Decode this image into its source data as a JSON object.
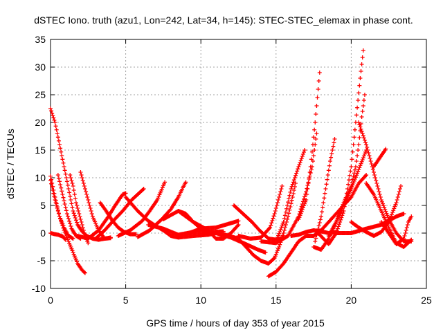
{
  "chart_data": {
    "type": "scatter",
    "title": "dSTEC Iono. truth (azu1, Lon=242, Lat=34, h=145): STEC-STEC_elemax in phase cont.",
    "xlabel": "GPS time / hours of day 353 of year 2015",
    "ylabel": "dSTEC  / TECUs",
    "xlim": [
      0,
      25
    ],
    "ylim": [
      -10,
      35
    ],
    "xticks": [
      0,
      5,
      10,
      15,
      20,
      25
    ],
    "yticks": [
      -10,
      -5,
      0,
      5,
      10,
      15,
      20,
      25,
      30,
      35
    ],
    "grid": true,
    "marker": "+",
    "color": "#ff0000",
    "series": [
      {
        "points": [
          [
            0.0,
            22.5
          ],
          [
            0.3,
            20
          ],
          [
            0.6,
            16
          ],
          [
            0.9,
            12
          ],
          [
            1.2,
            8
          ],
          [
            1.5,
            4
          ],
          [
            1.8,
            1.5
          ],
          [
            2.1,
            0.3
          ],
          [
            2.4,
            -0.5
          ],
          [
            2.8,
            -1.0
          ],
          [
            3.2,
            -1.2
          ],
          [
            3.6,
            -1.0
          ],
          [
            4.0,
            -0.8
          ]
        ]
      },
      {
        "points": [
          [
            0.0,
            10.3
          ],
          [
            0.3,
            6.5
          ],
          [
            0.6,
            3
          ],
          [
            0.9,
            0.5
          ],
          [
            1.2,
            -1.5
          ],
          [
            1.5,
            -3.5
          ],
          [
            1.8,
            -5.5
          ],
          [
            2.1,
            -6.7
          ],
          [
            2.3,
            -7.2
          ]
        ]
      },
      {
        "points": [
          [
            0.0,
            9.5
          ],
          [
            0.3,
            6
          ],
          [
            0.6,
            3
          ],
          [
            0.9,
            1
          ],
          [
            1.2,
            -0.5
          ],
          [
            1.5,
            -1.0
          ]
        ]
      },
      {
        "points": [
          [
            0.0,
            0.0
          ],
          [
            0.3,
            -0.2
          ],
          [
            0.5,
            -0.3
          ],
          [
            0.8,
            -0.6
          ],
          [
            1.0,
            -1.2
          ]
        ]
      },
      {
        "points": [
          [
            0.5,
            10.5
          ],
          [
            0.8,
            7
          ],
          [
            1.1,
            3.5
          ],
          [
            1.4,
            0.8
          ],
          [
            1.7,
            -0.5
          ],
          [
            2.0,
            -1.0
          ]
        ]
      },
      {
        "points": [
          [
            1.3,
            10.5
          ],
          [
            1.5,
            8.5
          ],
          [
            1.7,
            5.5
          ],
          [
            1.9,
            3.5
          ],
          [
            2.1,
            1.5
          ],
          [
            2.3,
            -0.5
          ],
          [
            2.5,
            -1.8
          ]
        ]
      },
      {
        "points": [
          [
            2.0,
            11.0
          ],
          [
            2.4,
            7
          ],
          [
            2.8,
            3
          ],
          [
            3.2,
            0.5
          ],
          [
            3.6,
            -1.0
          ],
          [
            4.0,
            -0.9
          ]
        ]
      },
      {
        "points": [
          [
            3.3,
            5.5
          ],
          [
            3.7,
            4
          ],
          [
            4.1,
            2.3
          ],
          [
            4.5,
            1.0
          ],
          [
            4.9,
            0.2
          ],
          [
            5.3,
            -0.2
          ],
          [
            5.7,
            -0.2
          ]
        ]
      },
      {
        "points": [
          [
            1.8,
            -0.5
          ],
          [
            2.5,
            -1.0
          ],
          [
            3.2,
            0.5
          ],
          [
            3.8,
            2.8
          ],
          [
            4.3,
            5.0
          ],
          [
            4.8,
            7.0
          ],
          [
            5.0,
            7.2
          ]
        ]
      },
      {
        "points": [
          [
            3.0,
            -1.0
          ],
          [
            3.6,
            0.5
          ],
          [
            4.2,
            2.3
          ],
          [
            4.8,
            4
          ],
          [
            5.4,
            6
          ],
          [
            6.0,
            7.5
          ],
          [
            6.2,
            8.0
          ]
        ]
      },
      {
        "points": [
          [
            4.5,
            -0.5
          ],
          [
            5.3,
            0.5
          ],
          [
            6.1,
            2.2
          ],
          [
            6.6,
            4.0
          ],
          [
            7.1,
            6.0
          ],
          [
            7.6,
            9.2
          ]
        ]
      },
      {
        "points": [
          [
            5.8,
            -0.7
          ],
          [
            6.6,
            0.5
          ],
          [
            7.4,
            2.5
          ],
          [
            8.0,
            4.3
          ],
          [
            8.5,
            6.5
          ],
          [
            8.8,
            8.2
          ],
          [
            9.0,
            9.2
          ]
        ]
      },
      {
        "points": [
          [
            5.0,
            6.5
          ],
          [
            5.8,
            4.0
          ],
          [
            6.5,
            2.2
          ],
          [
            7.0,
            1.3
          ],
          [
            7.5,
            0.5
          ],
          [
            8.0,
            -0.5
          ],
          [
            8.5,
            -0.8
          ],
          [
            9.5,
            -0.5
          ],
          [
            10.5,
            -0.3
          ],
          [
            11.0,
            0.0
          ]
        ]
      },
      {
        "points": [
          [
            6.5,
            1.5
          ],
          [
            7.5,
            0.8
          ],
          [
            8.5,
            -0.3
          ],
          [
            9.5,
            0.2
          ],
          [
            10.5,
            0.2
          ],
          [
            11.5,
            0.3
          ]
        ]
      },
      {
        "points": [
          [
            7.5,
            2.5
          ],
          [
            8.5,
            4.0
          ],
          [
            9.0,
            3.5
          ],
          [
            9.5,
            2.0
          ],
          [
            10.0,
            0.8
          ],
          [
            10.5,
            0.2
          ]
        ]
      },
      {
        "points": [
          [
            8.5,
            4.0
          ],
          [
            9.5,
            2.0
          ],
          [
            10.5,
            0.5
          ],
          [
            11.0,
            -1.0
          ],
          [
            11.5,
            -1.0
          ],
          [
            12.0,
            0.0
          ],
          [
            12.5,
            1.5
          ]
        ]
      },
      {
        "points": [
          [
            9.0,
            -0.2
          ],
          [
            10.0,
            0.8
          ],
          [
            11.0,
            1.0
          ],
          [
            12.0,
            1.8
          ],
          [
            12.5,
            2.2
          ]
        ]
      },
      {
        "points": [
          [
            12.2,
            5.0
          ],
          [
            12.8,
            3.5
          ],
          [
            13.4,
            2.0
          ],
          [
            13.9,
            0.5
          ],
          [
            14.5,
            -1.0
          ],
          [
            15.0,
            -1.2
          ],
          [
            15.5,
            -0.8
          ]
        ]
      },
      {
        "points": [
          [
            11.0,
            0.0
          ],
          [
            12.0,
            -0.8
          ],
          [
            13.0,
            -2.0
          ],
          [
            13.8,
            -3.0
          ],
          [
            14.3,
            -3.5
          ]
        ]
      },
      {
        "points": [
          [
            11.5,
            -0.2
          ],
          [
            12.5,
            -1.0
          ],
          [
            13.0,
            -2.5
          ],
          [
            13.5,
            -4.0
          ],
          [
            14.0,
            -5.0
          ],
          [
            14.5,
            -5.5
          ],
          [
            14.9,
            -4.5
          ],
          [
            15.2,
            -2.5
          ],
          [
            15.5,
            0.0
          ],
          [
            15.8,
            3.0
          ],
          [
            16.1,
            6.5
          ],
          [
            16.3,
            9.0
          ]
        ]
      },
      {
        "points": [
          [
            12.5,
            -0.5
          ],
          [
            13.3,
            -1.0
          ],
          [
            14.0,
            -0.8
          ],
          [
            14.6,
            1.0
          ],
          [
            14.9,
            3.5
          ],
          [
            15.2,
            6.5
          ],
          [
            15.4,
            8.5
          ]
        ]
      },
      {
        "points": [
          [
            14.5,
            -7.8
          ],
          [
            15.0,
            -7.0
          ],
          [
            15.5,
            -5.5
          ],
          [
            16.0,
            -3.5
          ],
          [
            16.5,
            -1.5
          ],
          [
            17.0,
            -0.5
          ],
          [
            17.5,
            -0.5
          ],
          [
            18.0,
            0.5
          ],
          [
            18.5,
            2.0
          ],
          [
            19.0,
            3.5
          ],
          [
            19.5,
            5.0
          ],
          [
            20.0,
            6.5
          ],
          [
            20.5,
            9.0
          ],
          [
            21.0,
            10.5
          ]
        ]
      },
      {
        "points": [
          [
            14.0,
            -1.5
          ],
          [
            15.0,
            -1.8
          ],
          [
            15.8,
            -0.5
          ],
          [
            16.5,
            3.0
          ],
          [
            17.0,
            7.5
          ],
          [
            17.4,
            12.0
          ],
          [
            17.7,
            18.0
          ]
        ]
      },
      {
        "points": [
          [
            15.0,
            -1.5
          ],
          [
            15.5,
            2.0
          ],
          [
            16.0,
            8.0
          ],
          [
            16.5,
            12.0
          ],
          [
            16.9,
            15.0
          ]
        ]
      },
      {
        "points": [
          [
            16.0,
            -0.5
          ],
          [
            16.5,
            -0.3
          ],
          [
            17.0,
            0.2
          ],
          [
            17.5,
            0.5
          ],
          [
            18.0,
            0.3
          ],
          [
            18.5,
            0.0
          ],
          [
            19.0,
            0.2
          ]
        ]
      },
      {
        "points": [
          [
            16.5,
            2.5
          ],
          [
            17.0,
            6.0
          ],
          [
            17.3,
            12.0
          ],
          [
            17.6,
            20.0
          ],
          [
            17.9,
            29.0
          ]
        ]
      },
      {
        "points": [
          [
            17.5,
            -2.5
          ],
          [
            18.0,
            -3.0
          ],
          [
            18.5,
            -1.0
          ],
          [
            19.0,
            2.0
          ],
          [
            19.5,
            5.5
          ],
          [
            20.0,
            8.5
          ],
          [
            20.3,
            12.0
          ],
          [
            20.5,
            16.0
          ],
          [
            20.7,
            21.0
          ],
          [
            20.9,
            25.0
          ]
        ]
      },
      {
        "points": [
          [
            17.6,
            -1.5
          ],
          [
            18.0,
            3.0
          ],
          [
            18.3,
            8.0
          ],
          [
            18.6,
            13.0
          ],
          [
            18.9,
            17.0
          ]
        ]
      },
      {
        "points": [
          [
            17.8,
            0.0
          ],
          [
            18.5,
            -2.0
          ],
          [
            19.0,
            0.0
          ],
          [
            19.5,
            4.0
          ],
          [
            20.0,
            12.0
          ],
          [
            20.3,
            20.0
          ],
          [
            20.6,
            28.0
          ],
          [
            20.8,
            33.0
          ]
        ]
      },
      {
        "points": [
          [
            18.5,
            -0.5
          ],
          [
            19.0,
            2.0
          ],
          [
            19.5,
            5.0
          ],
          [
            20.0,
            8.0
          ],
          [
            20.5,
            11.5
          ],
          [
            21.0,
            15.0
          ]
        ]
      },
      {
        "points": [
          [
            19.0,
            0.0
          ],
          [
            20.0,
            0.0
          ],
          [
            21.0,
            0.8
          ],
          [
            22.0,
            1.5
          ],
          [
            23.0,
            3.0
          ],
          [
            23.5,
            3.5
          ]
        ]
      },
      {
        "points": [
          [
            20.0,
            2.0
          ],
          [
            20.5,
            1.0
          ],
          [
            21.0,
            0.2
          ],
          [
            21.5,
            -0.5
          ],
          [
            22.0,
            0.2
          ],
          [
            22.5,
            2.0
          ],
          [
            23.0,
            5.5
          ],
          [
            23.3,
            8.5
          ]
        ]
      },
      {
        "points": [
          [
            20.5,
            20.0
          ],
          [
            21.0,
            16.0
          ],
          [
            21.5,
            11.0
          ],
          [
            22.0,
            6.0
          ],
          [
            22.5,
            2.5
          ],
          [
            23.0,
            0.0
          ],
          [
            23.5,
            -1.5
          ],
          [
            24.0,
            -1.5
          ]
        ]
      },
      {
        "points": [
          [
            21.0,
            9.0
          ],
          [
            21.5,
            7.0
          ],
          [
            22.0,
            4.0
          ],
          [
            22.5,
            1.0
          ],
          [
            23.0,
            -1.8
          ],
          [
            23.5,
            -2.5
          ],
          [
            24.0,
            -1.2
          ]
        ]
      },
      {
        "points": [
          [
            21.5,
            12.0
          ],
          [
            22.0,
            14.0
          ],
          [
            22.3,
            15.2
          ]
        ]
      },
      {
        "points": [
          [
            22.0,
            2.0
          ],
          [
            22.5,
            0.0
          ],
          [
            23.0,
            -2.0
          ],
          [
            23.5,
            -1.0
          ],
          [
            23.8,
            2.0
          ],
          [
            24.0,
            3.0
          ]
        ]
      }
    ]
  }
}
